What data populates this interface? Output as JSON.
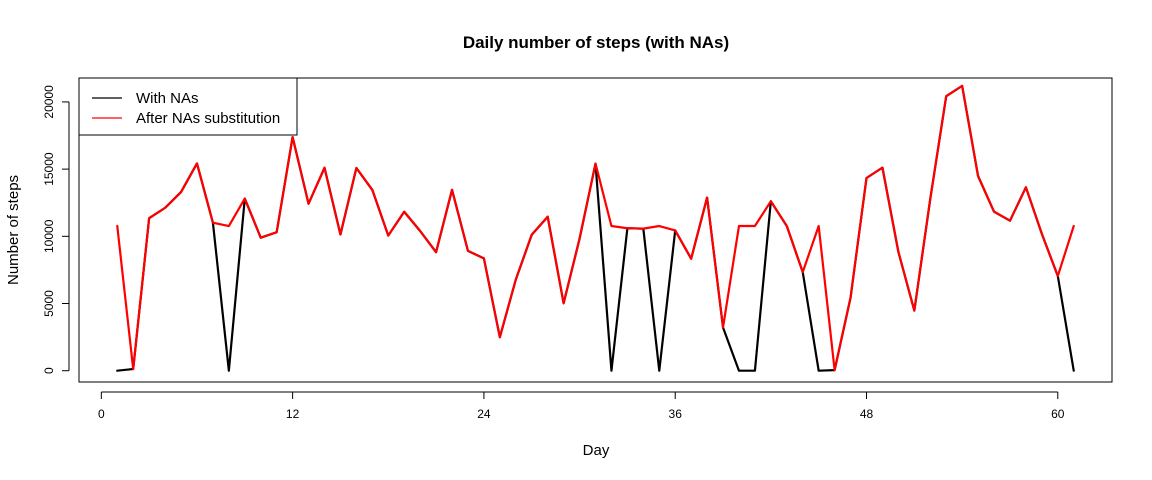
{
  "chart_data": {
    "type": "line",
    "title": "Daily number of steps (with NAs)",
    "xlabel": "Day",
    "ylabel": "Number of steps",
    "xlim": [
      -1.4,
      63.4
    ],
    "ylim": [
      -840,
      21780
    ],
    "xticks": [
      0,
      12,
      24,
      36,
      48,
      60
    ],
    "yticks": [
      0,
      5000,
      10000,
      15000,
      20000
    ],
    "grid": false,
    "legend_position": "top-left",
    "x": [
      1,
      2,
      3,
      4,
      5,
      6,
      7,
      8,
      9,
      10,
      11,
      12,
      13,
      14,
      15,
      16,
      17,
      18,
      19,
      20,
      21,
      22,
      23,
      24,
      25,
      26,
      27,
      28,
      29,
      30,
      31,
      32,
      33,
      34,
      35,
      36,
      37,
      38,
      39,
      40,
      41,
      42,
      43,
      44,
      45,
      46,
      47,
      48,
      49,
      50,
      51,
      52,
      53,
      54,
      55,
      56,
      57,
      58,
      59,
      60,
      61
    ],
    "series": [
      {
        "name": "With NAs",
        "color": "#000000",
        "values": [
          0,
          126,
          11352,
          12116,
          13294,
          15420,
          11015,
          0,
          12811,
          9900,
          10304,
          17382,
          12426,
          15098,
          10139,
          15084,
          13452,
          10056,
          11829,
          10395,
          8821,
          13460,
          8918,
          8355,
          2492,
          6778,
          10119,
          11458,
          5018,
          9819,
          15414,
          0,
          10600,
          10571,
          0,
          10439,
          8334,
          12883,
          3219,
          0,
          0,
          12608,
          10765,
          7336,
          0,
          41,
          5441,
          14339,
          15110,
          8841,
          4472,
          12787,
          20427,
          21194,
          14478,
          11834,
          11162,
          13646,
          10183,
          7047,
          0
        ]
      },
      {
        "name": "After NAs substitution",
        "color": "#ff0000",
        "values": [
          10766,
          126,
          11352,
          12116,
          13294,
          15420,
          11015,
          10766,
          12811,
          9900,
          10304,
          17382,
          12426,
          15098,
          10139,
          15084,
          13452,
          10056,
          11829,
          10395,
          8821,
          13460,
          8918,
          8355,
          2492,
          6778,
          10119,
          11458,
          5018,
          9819,
          15414,
          10766,
          10600,
          10571,
          10766,
          10439,
          8334,
          12883,
          3219,
          10766,
          10766,
          12608,
          10765,
          7336,
          10766,
          41,
          5441,
          14339,
          15110,
          8841,
          4472,
          12787,
          20427,
          21194,
          14478,
          11834,
          11162,
          13646,
          10183,
          7047,
          10766
        ]
      }
    ]
  }
}
